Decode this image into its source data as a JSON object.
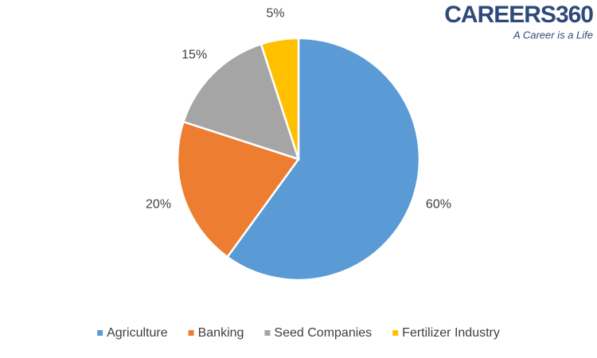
{
  "chart_data": {
    "type": "pie",
    "logo_text": "CAREERS360",
    "logo_tagline": "A Career is a Life",
    "categories": [
      "Agriculture",
      "Banking",
      "Seed Companies",
      "Fertilizer Industry"
    ],
    "values": [
      60,
      20,
      15,
      5
    ],
    "value_labels": [
      "60%",
      "20%",
      "15%",
      "5%"
    ],
    "colors": [
      "#5b9bd5",
      "#ed7d31",
      "#a5a5a5",
      "#ffc000"
    ],
    "legend": "bottom"
  }
}
